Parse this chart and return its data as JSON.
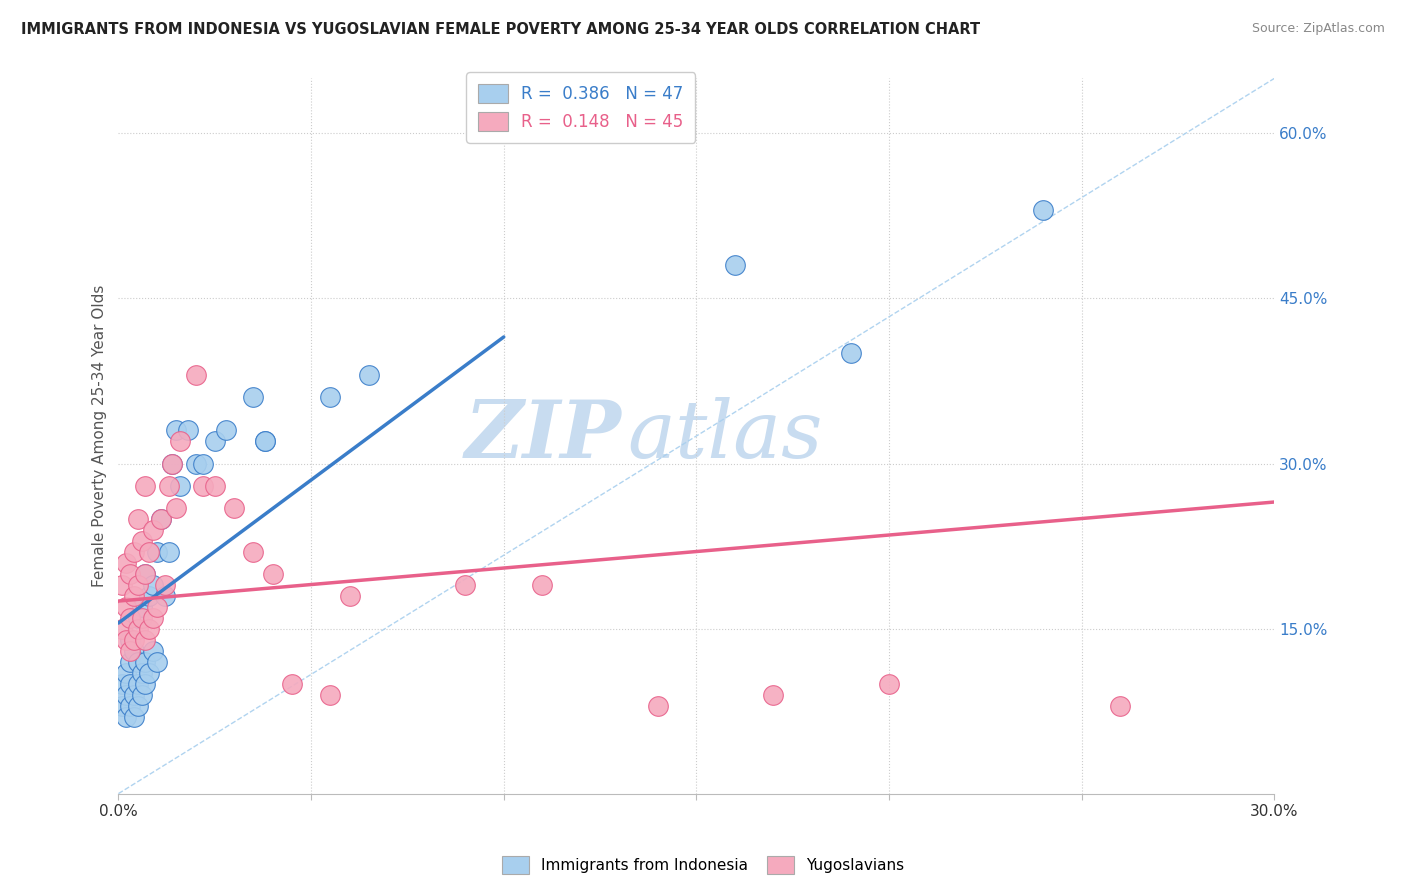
{
  "title": "IMMIGRANTS FROM INDONESIA VS YUGOSLAVIAN FEMALE POVERTY AMONG 25-34 YEAR OLDS CORRELATION CHART",
  "source": "Source: ZipAtlas.com",
  "ylabel": "Female Poverty Among 25-34 Year Olds",
  "xlim": [
    0.0,
    0.3
  ],
  "ylim": [
    0.0,
    0.65
  ],
  "color_blue": "#A8CFEE",
  "color_pink": "#F5AABE",
  "color_blue_line": "#3A7DC9",
  "color_pink_line": "#E8608A",
  "color_diagonal": "#A8CFEE",
  "watermark_zip": "ZIP",
  "watermark_atlas": "atlas",
  "indo_x": [
    0.001,
    0.001,
    0.002,
    0.002,
    0.002,
    0.003,
    0.003,
    0.003,
    0.003,
    0.004,
    0.004,
    0.004,
    0.005,
    0.005,
    0.005,
    0.005,
    0.006,
    0.006,
    0.006,
    0.007,
    0.007,
    0.007,
    0.008,
    0.008,
    0.009,
    0.009,
    0.01,
    0.01,
    0.011,
    0.012,
    0.013,
    0.014,
    0.015,
    0.016,
    0.018,
    0.02,
    0.022,
    0.025,
    0.028,
    0.035,
    0.038,
    0.038,
    0.055,
    0.065,
    0.16,
    0.19,
    0.24
  ],
  "indo_y": [
    0.08,
    0.1,
    0.07,
    0.09,
    0.11,
    0.08,
    0.1,
    0.12,
    0.14,
    0.07,
    0.09,
    0.13,
    0.08,
    0.1,
    0.12,
    0.16,
    0.09,
    0.11,
    0.17,
    0.1,
    0.12,
    0.2,
    0.11,
    0.18,
    0.13,
    0.19,
    0.12,
    0.22,
    0.25,
    0.18,
    0.22,
    0.3,
    0.33,
    0.28,
    0.33,
    0.3,
    0.3,
    0.32,
    0.33,
    0.36,
    0.32,
    0.32,
    0.36,
    0.38,
    0.48,
    0.4,
    0.53
  ],
  "yugo_x": [
    0.001,
    0.001,
    0.002,
    0.002,
    0.002,
    0.003,
    0.003,
    0.003,
    0.004,
    0.004,
    0.004,
    0.005,
    0.005,
    0.005,
    0.006,
    0.006,
    0.007,
    0.007,
    0.007,
    0.008,
    0.008,
    0.009,
    0.009,
    0.01,
    0.011,
    0.012,
    0.013,
    0.014,
    0.015,
    0.016,
    0.02,
    0.022,
    0.025,
    0.03,
    0.035,
    0.04,
    0.045,
    0.055,
    0.06,
    0.09,
    0.11,
    0.14,
    0.17,
    0.2,
    0.26
  ],
  "yugo_y": [
    0.15,
    0.19,
    0.14,
    0.17,
    0.21,
    0.13,
    0.16,
    0.2,
    0.14,
    0.18,
    0.22,
    0.15,
    0.19,
    0.25,
    0.16,
    0.23,
    0.14,
    0.2,
    0.28,
    0.15,
    0.22,
    0.16,
    0.24,
    0.17,
    0.25,
    0.19,
    0.28,
    0.3,
    0.26,
    0.32,
    0.38,
    0.28,
    0.28,
    0.26,
    0.22,
    0.2,
    0.1,
    0.09,
    0.18,
    0.19,
    0.19,
    0.08,
    0.09,
    0.1,
    0.08
  ],
  "indo_trendline_x": [
    0.0,
    0.1
  ],
  "indo_trendline_y": [
    0.155,
    0.415
  ],
  "yugo_trendline_x": [
    0.0,
    0.3
  ],
  "yugo_trendline_y": [
    0.175,
    0.265
  ]
}
